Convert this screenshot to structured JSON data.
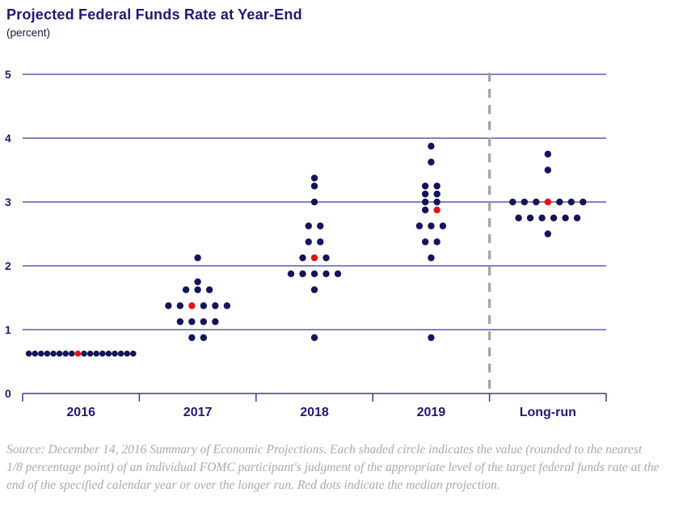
{
  "title": "Projected Federal Funds Rate at Year-End",
  "subtitle": "(percent)",
  "source_note": "Source: December 14, 2016 Summary of Economic Projections. Each shaded circle indicates the value (rounded to the nearest 1/8 percentage point) of an individual FOMC participant's judgment of the appropriate level of the target federal funds rate at the end of the specified calendar year or over the longer run. Red dots indicate the median projection.",
  "colors": {
    "title_text": "#1f1a70",
    "dot": "#14145a",
    "median_dot": "#e81111",
    "gridline": "#3c3c94",
    "axis_text": "#1f1a70",
    "divider_dash": "#a6a6a6",
    "source_text": "#a9a9a9"
  },
  "chart_data": {
    "type": "scatter",
    "title": "Projected Federal Funds Rate at Year-End",
    "ylabel": "percent",
    "ylim": [
      0,
      5
    ],
    "y_ticks": [
      "0",
      "1",
      "2",
      "3",
      "4",
      "5"
    ],
    "grid": "horizontal gridlines at each integer",
    "legend": "none",
    "categories": [
      "2016",
      "2017",
      "2018",
      "2019",
      "Long-run"
    ],
    "divider_after_category_index": 3,
    "value_increment": 0.125,
    "groups": [
      {
        "category": "2016",
        "median": 0.625,
        "distribution": [
          {
            "value": 0.625,
            "count": 18,
            "median_index": 8
          }
        ]
      },
      {
        "category": "2017",
        "median": 1.375,
        "distribution": [
          {
            "value": 2.125,
            "count": 1
          },
          {
            "value": 1.75,
            "count": 1
          },
          {
            "value": 1.625,
            "count": 3
          },
          {
            "value": 1.375,
            "count": 6,
            "median_index": 2
          },
          {
            "value": 1.125,
            "count": 4
          },
          {
            "value": 0.875,
            "count": 2
          }
        ]
      },
      {
        "category": "2018",
        "median": 2.125,
        "distribution": [
          {
            "value": 3.375,
            "count": 1
          },
          {
            "value": 3.25,
            "count": 1
          },
          {
            "value": 3.0,
            "count": 1
          },
          {
            "value": 2.625,
            "count": 2
          },
          {
            "value": 2.375,
            "count": 2
          },
          {
            "value": 2.125,
            "count": 3,
            "median_index": 1
          },
          {
            "value": 1.875,
            "count": 5
          },
          {
            "value": 1.625,
            "count": 1
          },
          {
            "value": 0.875,
            "count": 1
          }
        ]
      },
      {
        "category": "2019",
        "median": 2.875,
        "distribution": [
          {
            "value": 3.875,
            "count": 1
          },
          {
            "value": 3.625,
            "count": 1
          },
          {
            "value": 3.25,
            "count": 2
          },
          {
            "value": 3.125,
            "count": 2
          },
          {
            "value": 3.0,
            "count": 2
          },
          {
            "value": 2.875,
            "count": 2,
            "median_index": 1
          },
          {
            "value": 2.625,
            "count": 3
          },
          {
            "value": 2.375,
            "count": 2
          },
          {
            "value": 2.125,
            "count": 1
          },
          {
            "value": 0.875,
            "count": 1
          }
        ]
      },
      {
        "category": "Long-run",
        "median": 3.0,
        "distribution": [
          {
            "value": 3.75,
            "count": 1
          },
          {
            "value": 3.5,
            "count": 1
          },
          {
            "value": 3.0,
            "count": 7,
            "median_index": 3
          },
          {
            "value": 2.75,
            "count": 6
          },
          {
            "value": 2.5,
            "count": 1
          }
        ]
      }
    ]
  }
}
